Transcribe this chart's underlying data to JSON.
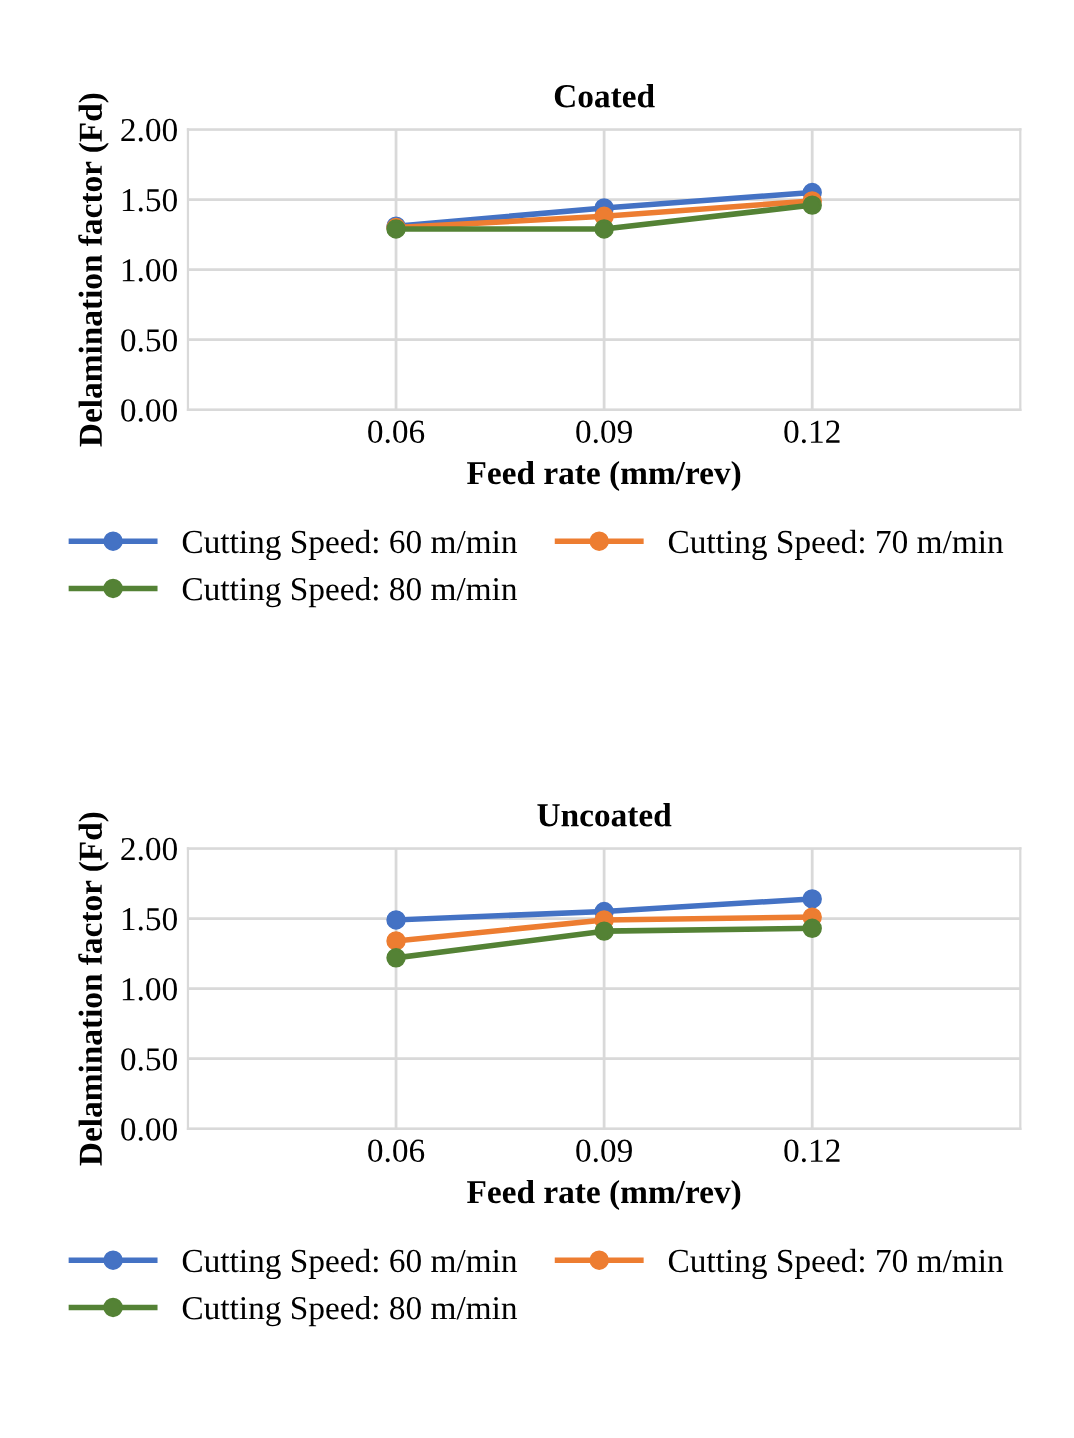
{
  "chart_data": [
    {
      "type": "line",
      "title": "Coated",
      "xlabel": "Feed rate (mm/rev)",
      "ylabel": "Delamination factor (Fd)",
      "x": [
        0.06,
        0.09,
        0.12
      ],
      "xlim": [
        0.03,
        0.15
      ],
      "xticks": [
        0.06,
        0.09,
        0.12
      ],
      "ylim": [
        0,
        2
      ],
      "yticks": [
        {
          "value": 0,
          "label": "0.00"
        },
        {
          "value": 0.5,
          "label": "0.50"
        },
        {
          "value": 1,
          "label": "1.00"
        },
        {
          "value": 1.5,
          "label": "1.50"
        },
        {
          "value": 2,
          "label": "2.00"
        }
      ],
      "grid": true,
      "marker": "circle",
      "legend": "bottom",
      "series": [
        {
          "name": "Cutting Speed: 60 m/min",
          "color": "#4472c4",
          "values": [
            1.31,
            1.44,
            1.55
          ]
        },
        {
          "name": "Cutting Speed: 70 m/min",
          "color": "#ed7d31",
          "values": [
            1.3,
            1.38,
            1.49
          ]
        },
        {
          "name": "Cutting Speed: 80 m/min",
          "color": "#548235",
          "values": [
            1.29,
            1.29,
            1.46
          ]
        }
      ]
    },
    {
      "type": "line",
      "title": "Uncoated",
      "xlabel": "Feed rate (mm/rev)",
      "ylabel": "Delamination factor (Fd)",
      "x": [
        0.06,
        0.09,
        0.12
      ],
      "xlim": [
        0.03,
        0.15
      ],
      "xticks": [
        0.06,
        0.09,
        0.12
      ],
      "ylim": [
        0,
        2
      ],
      "yticks": [
        {
          "value": 0,
          "label": "0.00"
        },
        {
          "value": 0.5,
          "label": "0.50"
        },
        {
          "value": 1,
          "label": "1.00"
        },
        {
          "value": 1.5,
          "label": "1.50"
        },
        {
          "value": 2,
          "label": "2.00"
        }
      ],
      "grid": true,
      "marker": "circle",
      "legend": "bottom",
      "series": [
        {
          "name": "Cutting Speed: 60 m/min",
          "color": "#4472c4",
          "values": [
            1.49,
            1.55,
            1.64
          ]
        },
        {
          "name": "Cutting Speed: 70 m/min",
          "color": "#ed7d31",
          "values": [
            1.34,
            1.49,
            1.51
          ]
        },
        {
          "name": "Cutting Speed: 80 m/min",
          "color": "#548235",
          "values": [
            1.22,
            1.41,
            1.43
          ]
        }
      ]
    }
  ]
}
